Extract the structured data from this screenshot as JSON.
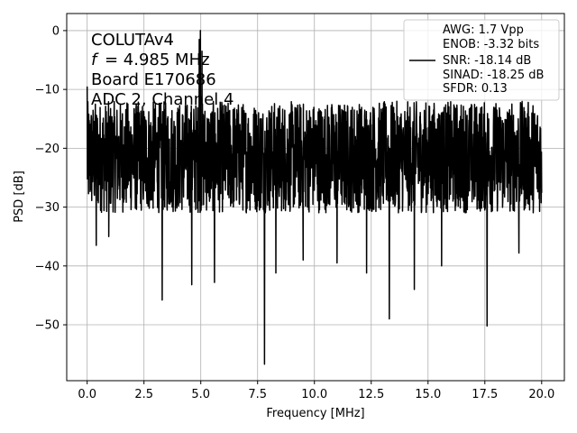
{
  "chart_data": {
    "type": "line",
    "xlabel": "Frequency [MHz]",
    "ylabel": "PSD [dB]",
    "xlim": [
      -0.9,
      21.0
    ],
    "ylim": [
      -59.5,
      2.9
    ],
    "x_ticks": [
      "0.0",
      "2.5",
      "5.0",
      "7.5",
      "10.0",
      "12.5",
      "15.0",
      "17.5",
      "20.0"
    ],
    "x_tick_values": [
      0,
      2.5,
      5,
      7.5,
      10,
      12.5,
      15,
      17.5,
      20
    ],
    "y_ticks": [
      "0",
      "−10",
      "−20",
      "−30",
      "−40",
      "−50"
    ],
    "y_tick_values": [
      0,
      -10,
      -20,
      -30,
      -40,
      -50
    ],
    "grid": true,
    "annotation_lines": [
      "COLUTAv4",
      "= 4.985 MHz",
      "Board E170686",
      "ADC 2, Channel 4"
    ],
    "annotation_italic_symbol": "f",
    "legend": {
      "placement": "upper right",
      "lines": [
        "AWG: 1.7 Vpp",
        "ENOB: -3.32 bits",
        "SNR: -18.14 dB",
        "SINAD: -18.25 dB",
        "SFDR: 0.13"
      ]
    },
    "series": [
      {
        "color": "#000000",
        "x_start": 0.0,
        "x_end": 20.0,
        "noise_floor_range": [
          -31,
          -12
        ],
        "peaks": [
          {
            "x": 4.985,
            "y": 0.0
          },
          {
            "x": 4.93,
            "y": -1.5
          },
          {
            "x": 5.05,
            "y": -3.5
          },
          {
            "x": 0.0,
            "y": -9.5
          }
        ],
        "dips": [
          {
            "x": 0.4,
            "y": -36.5
          },
          {
            "x": 0.95,
            "y": -35.0
          },
          {
            "x": 3.3,
            "y": -45.8
          },
          {
            "x": 4.6,
            "y": -43.2
          },
          {
            "x": 5.6,
            "y": -42.8
          },
          {
            "x": 7.8,
            "y": -56.7
          },
          {
            "x": 8.3,
            "y": -41.2
          },
          {
            "x": 9.5,
            "y": -39.0
          },
          {
            "x": 11.0,
            "y": -39.5
          },
          {
            "x": 12.3,
            "y": -41.2
          },
          {
            "x": 13.3,
            "y": -49.0
          },
          {
            "x": 14.4,
            "y": -44.0
          },
          {
            "x": 15.6,
            "y": -40.0
          },
          {
            "x": 17.6,
            "y": -50.2
          },
          {
            "x": 19.0,
            "y": -37.8
          }
        ]
      }
    ]
  }
}
